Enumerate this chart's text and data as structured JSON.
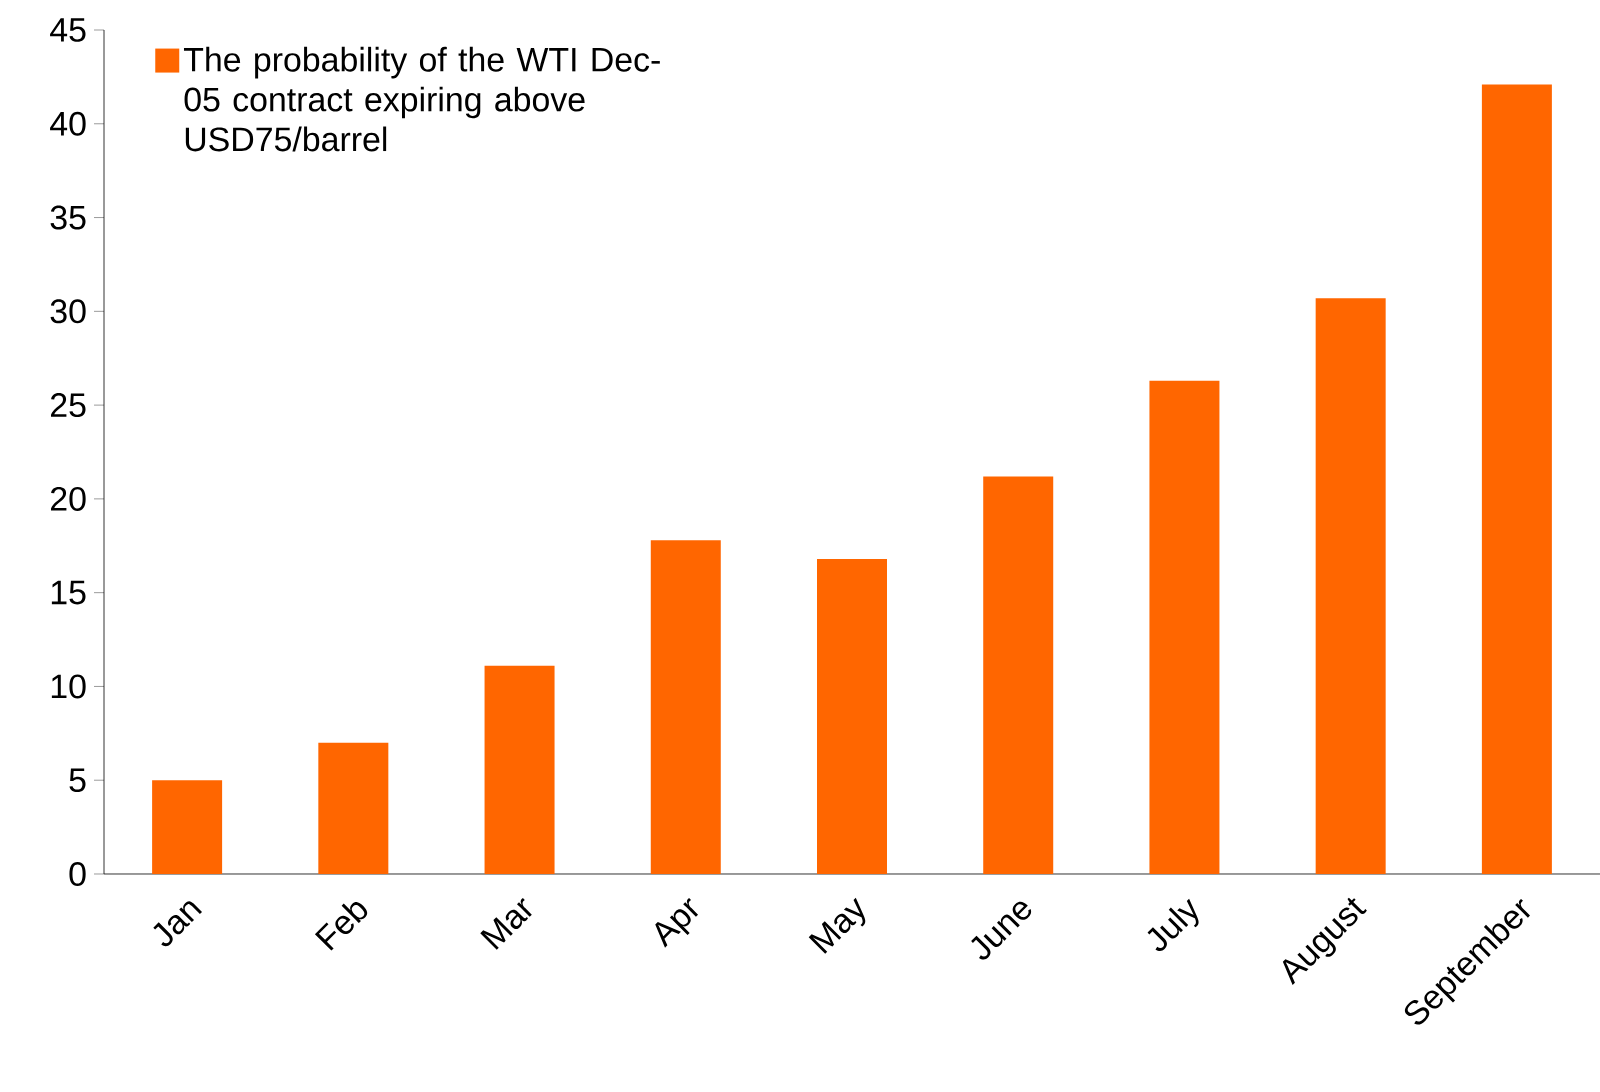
{
  "chart_data": {
    "type": "bar",
    "categories": [
      "Jan",
      "Feb",
      "Mar",
      "Apr",
      "May",
      "June",
      "July",
      "August",
      "September"
    ],
    "series": [
      {
        "name": "The probability of the WTI Dec-05 contract expiring above USD75/barrel",
        "color": "#ff6600",
        "values": [
          5.0,
          7.0,
          11.1,
          17.8,
          16.8,
          21.2,
          26.3,
          30.7,
          42.1
        ]
      }
    ],
    "ylim": [
      0,
      45
    ],
    "yticks": [
      0,
      5,
      10,
      15,
      20,
      25,
      30,
      35,
      40,
      45
    ],
    "legend": "top left"
  }
}
